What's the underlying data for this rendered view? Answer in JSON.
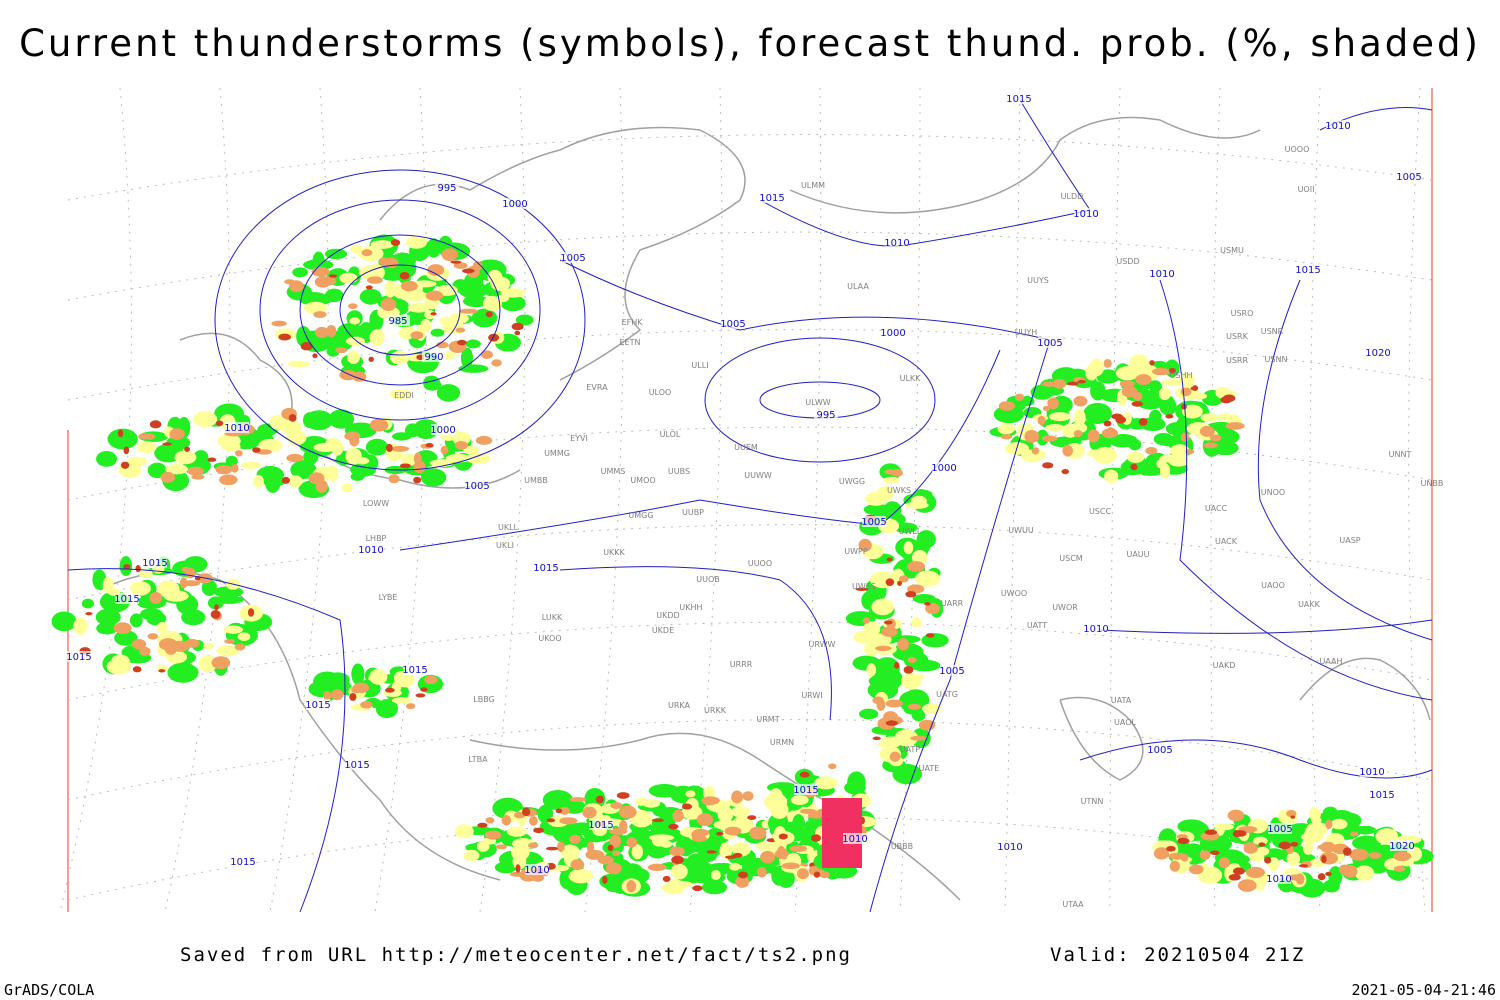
{
  "title": "Current thunderstorms (symbols), forecast thund. prob. (%, shaded)",
  "footer": {
    "source": "Saved from URL http://meteocenter.net/fact/ts2.png",
    "valid": "Valid: 20210504 21Z"
  },
  "credit": "GrADS/COLA",
  "timestamp": "2021-05-04-21:46",
  "isobar_labels": [
    995,
    1000,
    985,
    990,
    1000,
    1005,
    1010,
    1005,
    1015,
    1010,
    1005,
    1000,
    995,
    1000,
    1005,
    1010,
    1015,
    1015,
    1015,
    1015,
    1015,
    1015,
    1015,
    1015,
    1015,
    1010,
    1015,
    1010,
    1010,
    1005,
    1010,
    1005,
    1010,
    1015,
    1010,
    1005,
    1015,
    1020,
    1010,
    1005,
    1010,
    1015,
    1005,
    1020,
    1010
  ],
  "stations": [
    "UUYH",
    "ULAA",
    "UUYS",
    "ULDD",
    "ULMM",
    "USMU",
    "USDD",
    "USRO",
    "USRK",
    "USNR",
    "USRR",
    "USNN",
    "USHH",
    "ULKK",
    "ULWW",
    "EFHK",
    "EETN",
    "ULLI",
    "EVRA",
    "ULOO",
    "ULOL",
    "UUEM",
    "EYVI",
    "UMMG",
    "UUWW",
    "UUBS",
    "UMOO",
    "UWGG",
    "UWKS",
    "UMMS",
    "UMBB",
    "UUBP",
    "UMGG",
    "UKLL",
    "UKLI",
    "UWLL",
    "UWPP",
    "UKKK",
    "UUOO",
    "UUOB",
    "UWSS",
    "UKHH",
    "UKDD",
    "UKDE",
    "UKOO",
    "LUKK",
    "URWW",
    "URRR",
    "URKA",
    "URKK",
    "URMT",
    "URMN",
    "URWI",
    "LBBG",
    "LYBE",
    "LHBP",
    "LOWW",
    "EDDI",
    "UATG",
    "UATT",
    "UWOR",
    "UWOO",
    "UARR",
    "UWUU",
    "USCM",
    "UAUU",
    "UACC",
    "UACK",
    "UASP",
    "UAOO",
    "UAKK",
    "UAKD",
    "UAAH",
    "UATA",
    "UAOL",
    "UTNN",
    "UBBB",
    "UTAA",
    "UATE",
    "UATP",
    "UNOO",
    "UNNT",
    "UNBB",
    "UOOO",
    "UOII",
    "USCC",
    "LTBA"
  ]
}
